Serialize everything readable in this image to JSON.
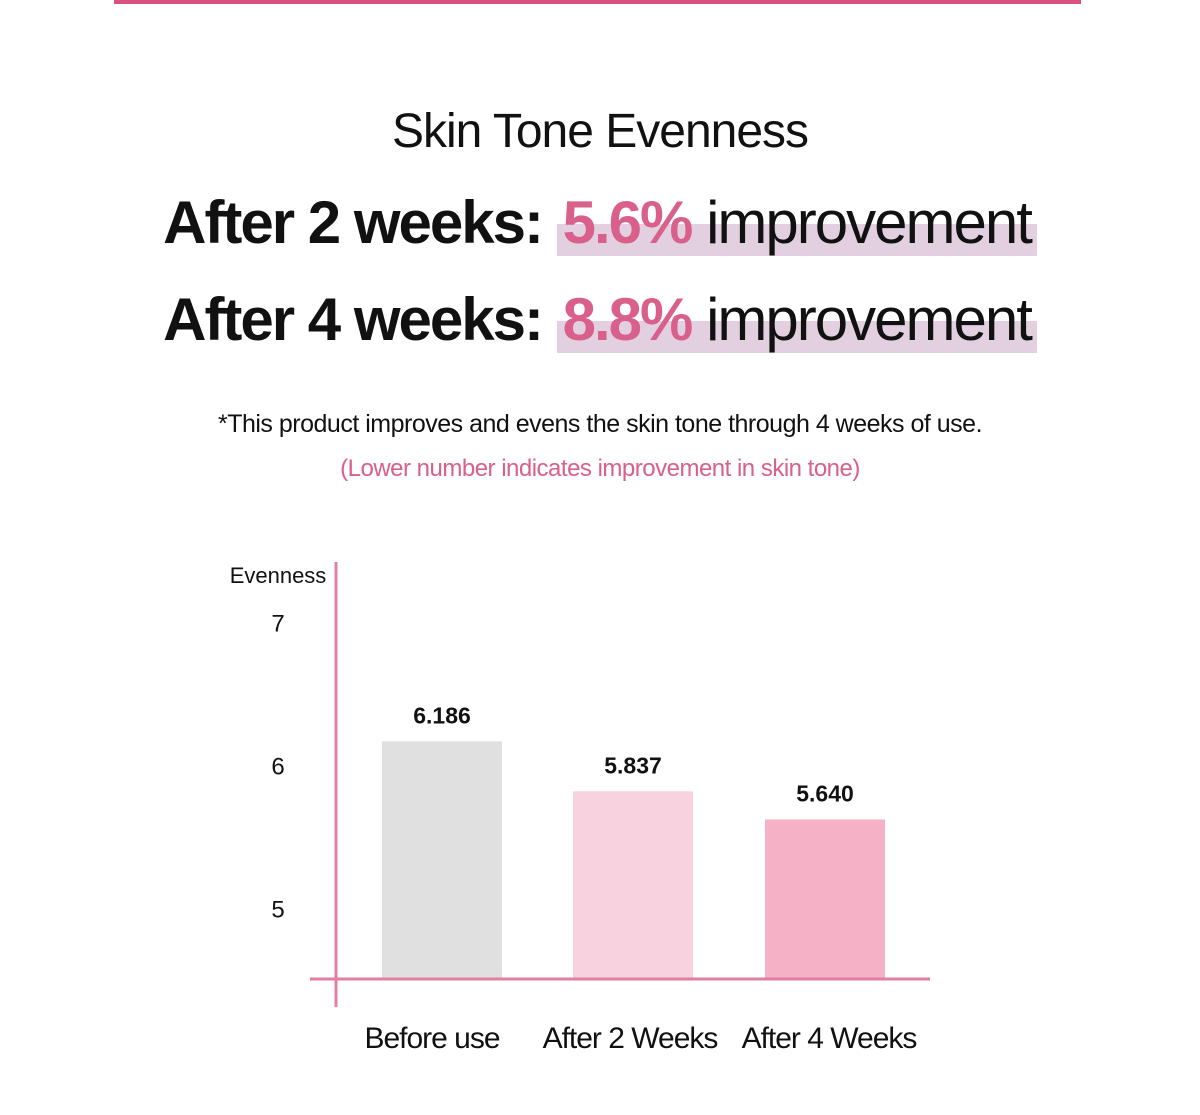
{
  "chart_data": {
    "type": "bar",
    "title": "Skin Tone Evenness",
    "headlines": [
      {
        "prefix": "After 2 weeks:",
        "value": "5.6%",
        "suffix": "improvement"
      },
      {
        "prefix": "After 4 weeks:",
        "value": "8.8%",
        "suffix": "improvement"
      }
    ],
    "note": "*This product improves and evens the skin tone through 4 weeks of use.",
    "subnote": "(Lower number indicates improvement in skin tone)",
    "y_label": "Evenness",
    "categories": [
      "Before use",
      "After 2 Weeks",
      "After 4 Weeks"
    ],
    "values": [
      6.186,
      5.837,
      5.64
    ],
    "value_labels": [
      "6.186",
      "5.837",
      "5.640"
    ],
    "colors": [
      "#e0e0e0",
      "#f8d2de",
      "#f5b2c7"
    ],
    "ylim": [
      4.525,
      7.44
    ],
    "yticks": [
      5,
      6,
      7
    ],
    "grid": false
  }
}
